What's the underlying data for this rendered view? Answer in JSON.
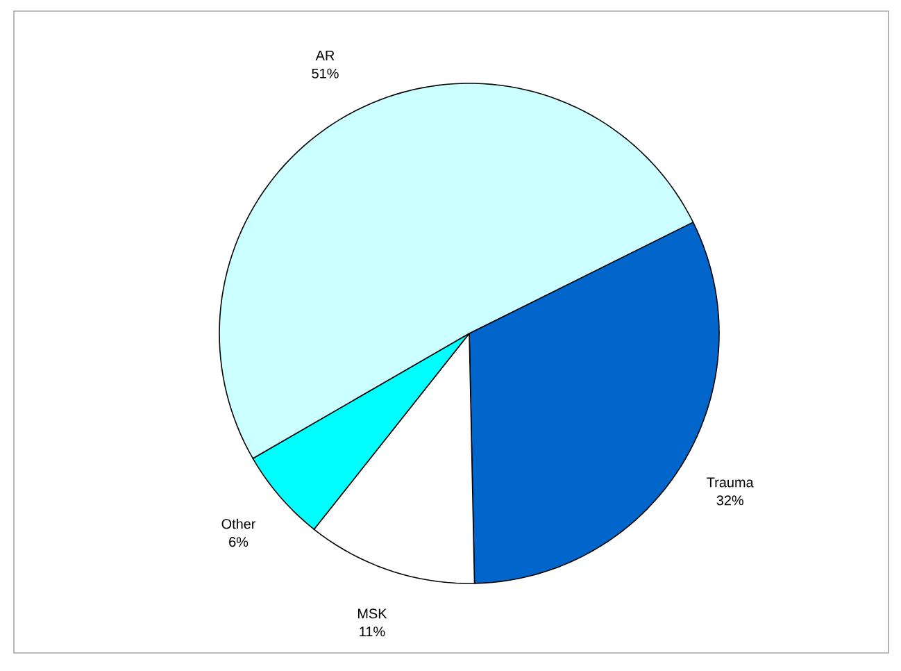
{
  "chart_data": {
    "type": "pie",
    "categories": [
      "Trauma",
      "MSK",
      "Other",
      "AR"
    ],
    "values": [
      32,
      11,
      6,
      51
    ],
    "colors": [
      "#0066cc",
      "#ffffff",
      "#00ffff",
      "#ccffff"
    ],
    "value_labels": [
      "32%",
      "11%",
      "6%",
      "51%"
    ]
  }
}
